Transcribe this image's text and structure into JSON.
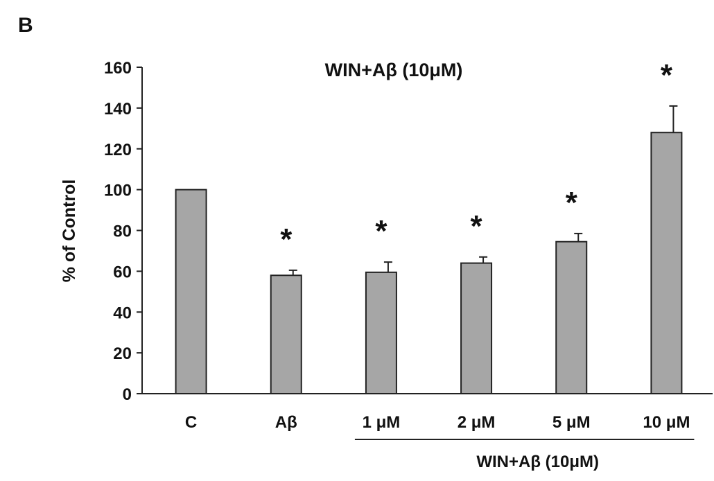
{
  "panel_label": "B",
  "chart_data": {
    "type": "bar",
    "title": "WIN+Aβ (10μM)",
    "ylabel": "% of Control",
    "xlabel": "",
    "ylim": [
      0,
      160
    ],
    "yticks": [
      0,
      20,
      40,
      60,
      80,
      100,
      120,
      140,
      160
    ],
    "categories": [
      "C",
      "Aβ",
      "1 μM",
      "2 μM",
      "5 μM",
      "10 μM"
    ],
    "values": [
      100,
      58,
      59.5,
      64,
      74.5,
      128
    ],
    "errors": [
      0,
      2.5,
      5,
      3,
      4,
      13
    ],
    "significance": [
      "",
      "*",
      "*",
      "*",
      "*",
      "*"
    ],
    "group_bracket": {
      "label": "WIN+Aβ (10μM)",
      "from_index": 2,
      "to_index": 5
    },
    "grid": false,
    "bar_color": "#a6a6a6"
  }
}
